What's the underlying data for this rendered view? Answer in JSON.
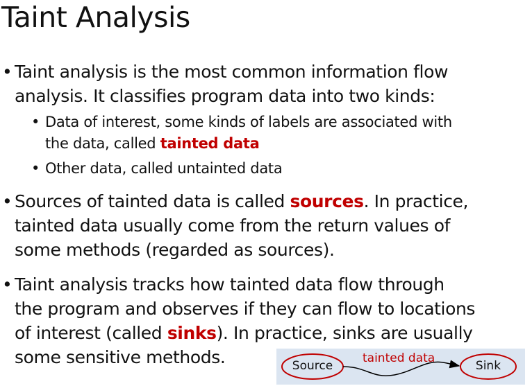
{
  "slide": {
    "title": "Taint Analysis"
  },
  "bullets": [
    {
      "lines": [
        "Taint analysis is the most common information flow",
        "analysis. It classifies program data into two kinds:"
      ]
    },
    {
      "sub1_line1": "Data of interest, some kinds of labels are associated with",
      "sub1_line2_pre": "the data, called ",
      "sub1_line2_hl": "tainted data",
      "sub2_line1": "Other data, called untainted data"
    },
    {
      "line1_pre": "Sources of tainted data is called ",
      "line1_hl": "sources",
      "line1_post": ". In practice,",
      "line2": "tainted data usually come from the return values of",
      "line3": "some methods (regarded as sources)."
    },
    {
      "line1": "Taint analysis tracks how tainted data flow through",
      "line2": "the program and observes if they can flow to locations",
      "line3_pre": "of interest (called ",
      "line3_hl": "sinks",
      "line3_post": "). In practice, sinks are usually",
      "line4": "some sensitive methods."
    }
  ],
  "diagram": {
    "source_label": "Source",
    "sink_label": "Sink",
    "edge_label": "tainted data",
    "highlight_color": "#c00000",
    "node_border_color": "#c00000",
    "background_color": "#dbe5f1"
  },
  "bullet_glyph": "•"
}
